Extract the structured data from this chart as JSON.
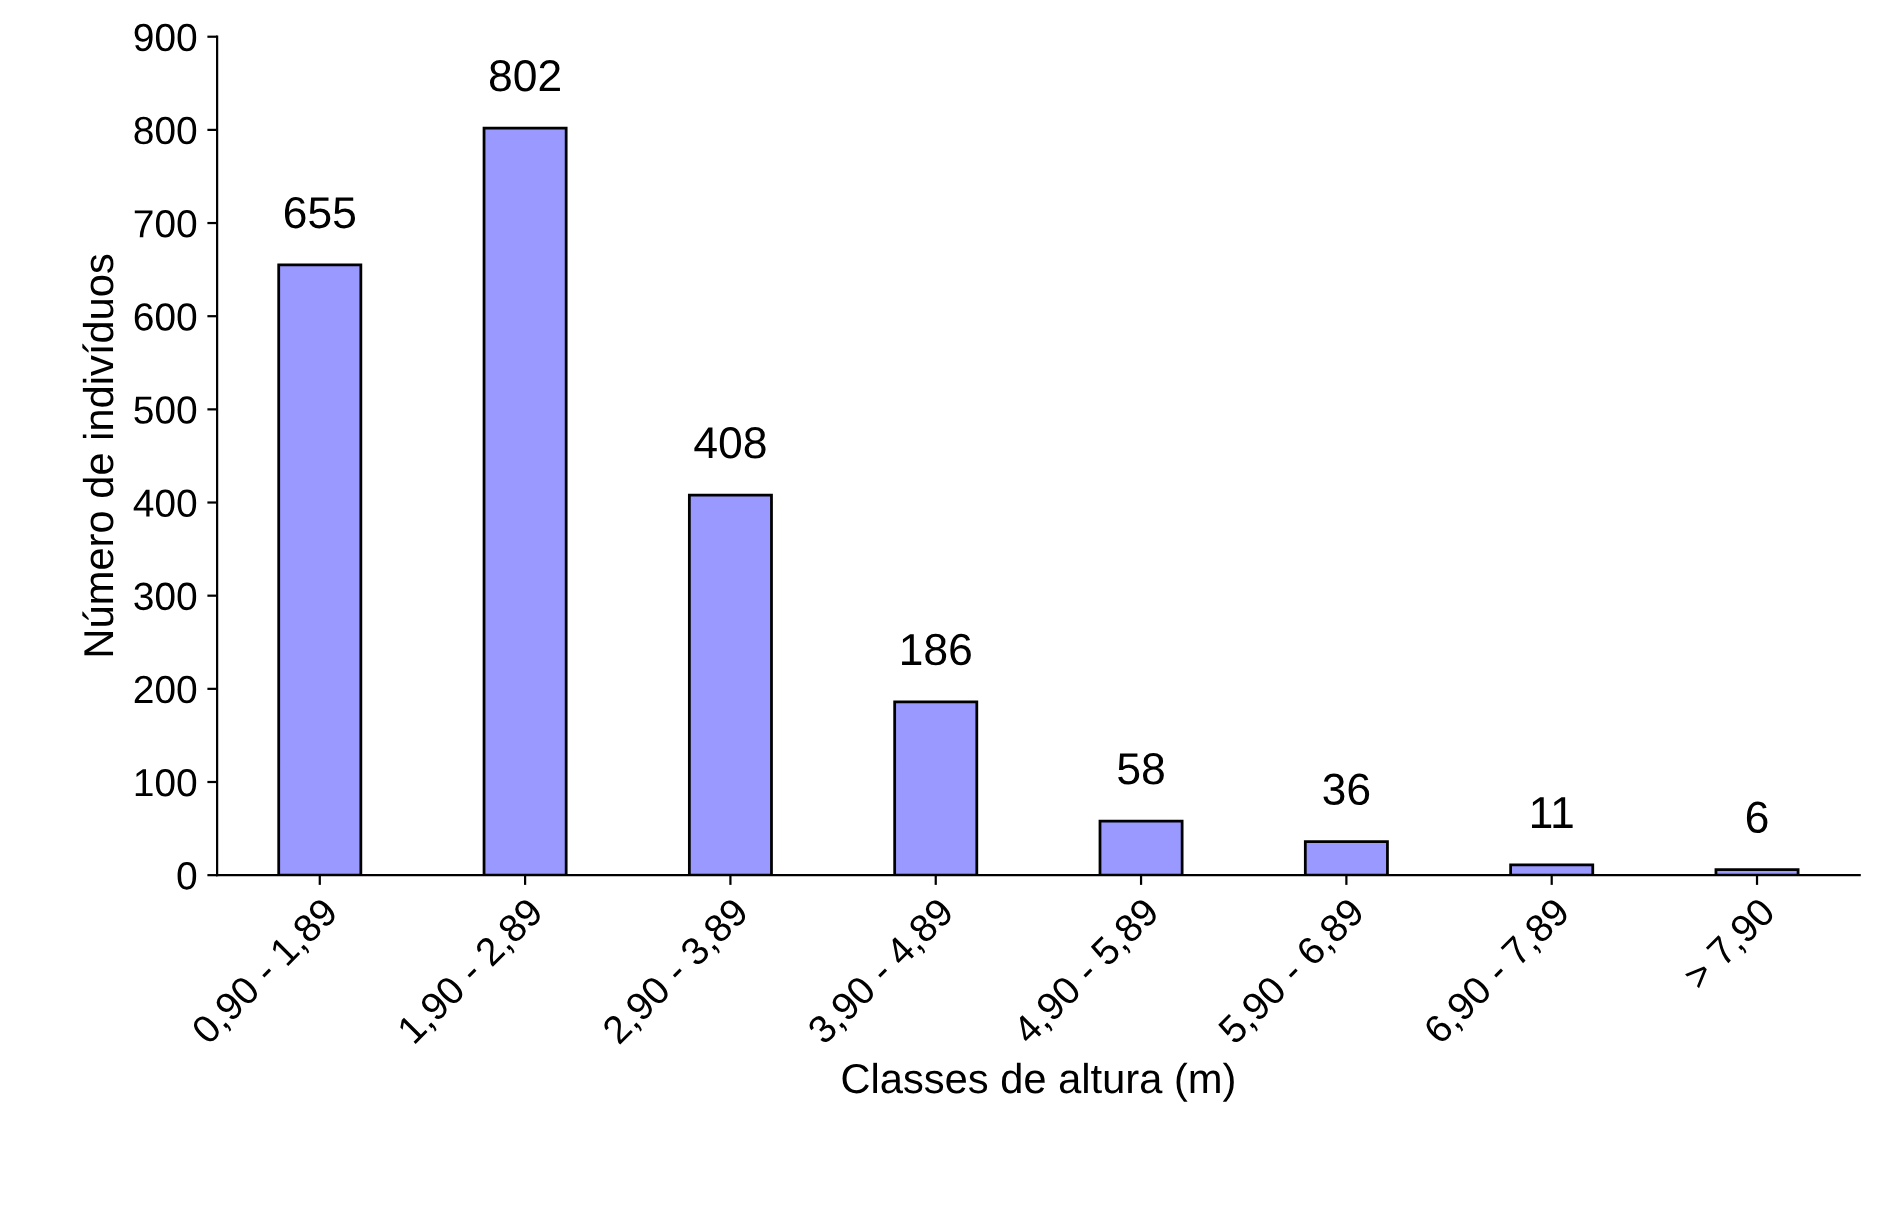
{
  "chart_data": {
    "type": "bar",
    "xlabel": "Classes de altura (m)",
    "ylabel": "Número de indivíduos",
    "categories": [
      "0,90 - 1,89",
      "1,90 - 2,89",
      "2,90 - 3,89",
      "3,90 - 4,89",
      "4,90 - 5,89",
      "5,90 - 6,89",
      "6,90 - 7,89",
      "> 7,90"
    ],
    "values": [
      655,
      802,
      408,
      186,
      58,
      36,
      11,
      6
    ],
    "color": "#9999ff",
    "ylim": [
      0,
      900
    ],
    "yticks": [
      0,
      100,
      200,
      300,
      400,
      500,
      600,
      700,
      800,
      900
    ],
    "data_labels": true,
    "grid": false,
    "legend": false
  }
}
